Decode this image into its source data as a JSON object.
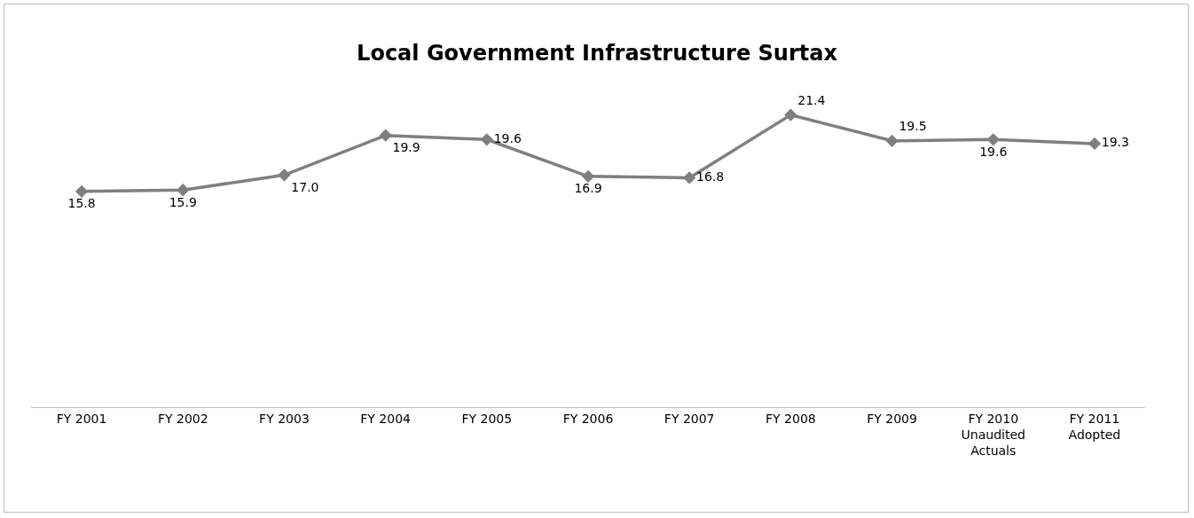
{
  "chart_data": {
    "type": "line",
    "title": "Local Government Infrastructure Surtax",
    "categories": [
      "FY 2001",
      "FY 2002",
      "FY 2003",
      "FY 2004",
      "FY 2005",
      "FY 2006",
      "FY 2007",
      "FY 2008",
      "FY 2009",
      "FY 2010\nUnaudited\nActuals",
      "FY 2011\nAdopted"
    ],
    "series": [
      {
        "color": "#7f7f7f",
        "values": [
          15.8,
          15.9,
          17.0,
          19.9,
          19.6,
          16.9,
          16.8,
          21.4,
          19.5,
          19.6,
          19.3
        ],
        "value_labels": [
          "15.8",
          "15.9",
          "17.0",
          "19.9",
          "19.6",
          "16.9",
          "16.8",
          "21.4",
          "19.5",
          "19.6",
          "19.3"
        ]
      }
    ],
    "marker": "diamond",
    "line_style": "solid",
    "grid": false
  }
}
